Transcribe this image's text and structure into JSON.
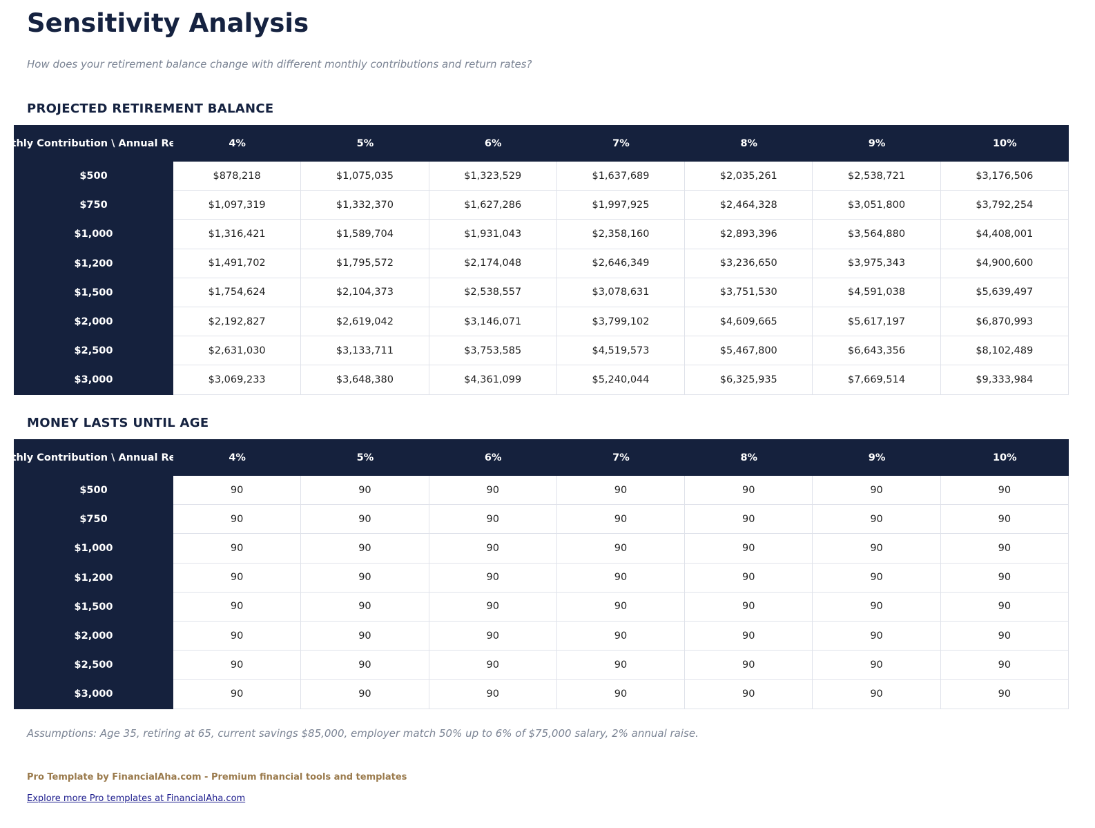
{
  "header": {
    "title": "Sensitivity Analysis",
    "subtitle": "How does your retirement balance change with different monthly contributions and return rates?"
  },
  "sections": [
    {
      "title": "PROJECTED RETIREMENT BALANCE",
      "table": {
        "columns": [
          "Monthly Contribution \\ Annual Return",
          "4%",
          "5%",
          "6%",
          "7%",
          "8%",
          "9%",
          "10%"
        ],
        "rows": [
          {
            "label": "$500",
            "cells": [
              "$878,218",
              "$1,075,035",
              "$1,323,529",
              "$1,637,689",
              "$2,035,261",
              "$2,538,721",
              "$3,176,506"
            ]
          },
          {
            "label": "$750",
            "cells": [
              "$1,097,319",
              "$1,332,370",
              "$1,627,286",
              "$1,997,925",
              "$2,464,328",
              "$3,051,800",
              "$3,792,254"
            ]
          },
          {
            "label": "$1,000",
            "cells": [
              "$1,316,421",
              "$1,589,704",
              "$1,931,043",
              "$2,358,160",
              "$2,893,396",
              "$3,564,880",
              "$4,408,001"
            ]
          },
          {
            "label": "$1,200",
            "cells": [
              "$1,491,702",
              "$1,795,572",
              "$2,174,048",
              "$2,646,349",
              "$3,236,650",
              "$3,975,343",
              "$4,900,600"
            ]
          },
          {
            "label": "$1,500",
            "cells": [
              "$1,754,624",
              "$2,104,373",
              "$2,538,557",
              "$3,078,631",
              "$3,751,530",
              "$4,591,038",
              "$5,639,497"
            ]
          },
          {
            "label": "$2,000",
            "cells": [
              "$2,192,827",
              "$2,619,042",
              "$3,146,071",
              "$3,799,102",
              "$4,609,665",
              "$5,617,197",
              "$6,870,993"
            ]
          },
          {
            "label": "$2,500",
            "cells": [
              "$2,631,030",
              "$3,133,711",
              "$3,753,585",
              "$4,519,573",
              "$5,467,800",
              "$6,643,356",
              "$8,102,489"
            ]
          },
          {
            "label": "$3,000",
            "cells": [
              "$3,069,233",
              "$3,648,380",
              "$4,361,099",
              "$5,240,044",
              "$6,325,935",
              "$7,669,514",
              "$9,333,984"
            ]
          }
        ]
      }
    },
    {
      "title": "MONEY LASTS UNTIL AGE",
      "table": {
        "columns": [
          "Monthly Contribution \\ Annual Return",
          "4%",
          "5%",
          "6%",
          "7%",
          "8%",
          "9%",
          "10%"
        ],
        "rows": [
          {
            "label": "$500",
            "cells": [
              90,
              90,
              90,
              90,
              90,
              90,
              90
            ]
          },
          {
            "label": "$750",
            "cells": [
              90,
              90,
              90,
              90,
              90,
              90,
              90
            ]
          },
          {
            "label": "$1,000",
            "cells": [
              90,
              90,
              90,
              90,
              90,
              90,
              90
            ]
          },
          {
            "label": "$1,200",
            "cells": [
              90,
              90,
              90,
              90,
              90,
              90,
              90
            ]
          },
          {
            "label": "$1,500",
            "cells": [
              90,
              90,
              90,
              90,
              90,
              90,
              90
            ]
          },
          {
            "label": "$2,000",
            "cells": [
              90,
              90,
              90,
              90,
              90,
              90,
              90
            ]
          },
          {
            "label": "$2,500",
            "cells": [
              90,
              90,
              90,
              90,
              90,
              90,
              90
            ]
          },
          {
            "label": "$3,000",
            "cells": [
              90,
              90,
              90,
              90,
              90,
              90,
              90
            ]
          }
        ]
      }
    }
  ],
  "footer": {
    "assumptions": "Assumptions: Age 35, retiring at 65, current savings $85,000, employer match 50% up to 6% of $75,000 salary, 2% annual raise.",
    "pro": "Pro Template by FinancialAha.com - Premium financial tools and templates",
    "link": "Explore more Pro templates at FinancialAha.com"
  }
}
